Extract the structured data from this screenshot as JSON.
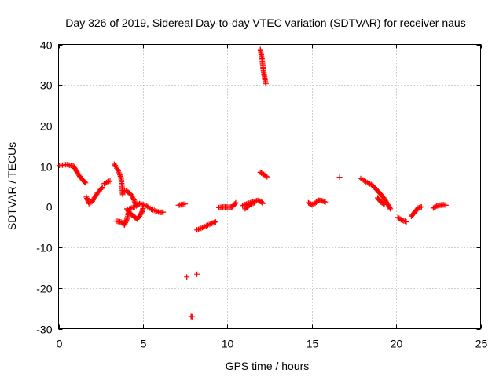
{
  "chart_data": {
    "type": "scatter",
    "title": "Day 326 of 2019, Sidereal Day-to-day VTEC variation (SDTVAR) for receiver naus",
    "xlabel": "GPS time / hours",
    "ylabel": "SDTVAR / TECUs",
    "xlim": [
      0,
      25
    ],
    "ylim": [
      -30,
      40
    ],
    "xticks": [
      0,
      5,
      10,
      15,
      20,
      25
    ],
    "yticks": [
      -30,
      -20,
      -10,
      0,
      10,
      20,
      30,
      40
    ],
    "grid": true,
    "marker": "+",
    "color": "#ff0000",
    "series": [
      {
        "name": "SDTVAR",
        "segments": [
          [
            [
              0.05,
              10.2
            ],
            [
              0.5,
              10.4
            ],
            [
              0.9,
              10.0
            ],
            [
              1.0,
              9.2
            ],
            [
              1.3,
              7.2
            ],
            [
              1.6,
              5.9
            ],
            [
              1.5,
              6.3
            ]
          ],
          [
            [
              1.65,
              2.4
            ],
            [
              1.8,
              0.8
            ],
            [
              2.0,
              1.4
            ],
            [
              2.3,
              3.4
            ],
            [
              2.6,
              4.8
            ]
          ],
          [
            [
              2.7,
              5.7
            ],
            [
              3.05,
              6.4
            ]
          ],
          [
            [
              3.3,
              10.5
            ],
            [
              3.5,
              9.2
            ],
            [
              3.7,
              7.2
            ],
            [
              3.75,
              5.4
            ],
            [
              3.8,
              3.0
            ]
          ],
          [
            [
              3.4,
              -3.5
            ],
            [
              3.7,
              -3.7
            ],
            [
              3.9,
              -4.5
            ],
            [
              4.05,
              -3.0
            ],
            [
              4.2,
              -0.5
            ],
            [
              4.5,
              0.0
            ]
          ],
          [
            [
              3.75,
              3.6
            ],
            [
              4.0,
              4.0
            ],
            [
              4.3,
              3.0
            ],
            [
              4.5,
              1.4
            ],
            [
              4.6,
              0.2
            ],
            [
              4.8,
              0.8
            ],
            [
              5.2,
              0.3
            ],
            [
              5.5,
              -0.6
            ],
            [
              6.0,
              -1.4
            ],
            [
              6.2,
              -1.3
            ]
          ],
          [
            [
              4.05,
              -0.5
            ],
            [
              4.2,
              -1.5
            ],
            [
              4.5,
              -2.5
            ],
            [
              4.65,
              -3.0
            ],
            [
              4.8,
              -2.3
            ],
            [
              4.95,
              -1.2
            ],
            [
              5.0,
              -0.4
            ]
          ],
          [
            [
              7.1,
              0.4
            ],
            [
              7.5,
              0.7
            ]
          ],
          [
            [
              7.6,
              -17.3
            ]
          ],
          [
            [
              8.2,
              -16.6
            ]
          ],
          [
            [
              7.85,
              -27.0
            ],
            [
              7.95,
              -27.1
            ]
          ],
          [
            [
              8.2,
              -5.7
            ],
            [
              8.6,
              -5.0
            ],
            [
              9.0,
              -4.2
            ],
            [
              9.3,
              -3.7
            ]
          ],
          [
            [
              9.5,
              -0.2
            ],
            [
              9.8,
              0.0
            ],
            [
              10.1,
              -0.1
            ],
            [
              10.3,
              0.0
            ],
            [
              10.4,
              0.5
            ],
            [
              10.5,
              1.0
            ]
          ],
          [
            [
              10.9,
              0.3
            ],
            [
              11.2,
              0.8
            ],
            [
              11.5,
              1.2
            ],
            [
              11.8,
              1.6
            ],
            [
              12.0,
              1.3
            ],
            [
              12.1,
              0.8
            ]
          ],
          [
            [
              11.05,
              -0.5
            ],
            [
              11.3,
              0.4
            ],
            [
              11.6,
              1.0
            ]
          ],
          [
            [
              11.95,
              8.5
            ],
            [
              12.15,
              8.0
            ],
            [
              12.35,
              7.4
            ]
          ],
          [
            [
              11.95,
              38.8
            ],
            [
              12.05,
              36.5
            ],
            [
              12.12,
              34.0
            ],
            [
              12.2,
              32.0
            ],
            [
              12.28,
              30.3
            ]
          ],
          [
            [
              14.8,
              1.0
            ],
            [
              15.0,
              0.5
            ],
            [
              15.2,
              0.9
            ],
            [
              15.4,
              1.6
            ],
            [
              15.6,
              1.5
            ],
            [
              15.8,
              1.2
            ]
          ],
          [
            [
              16.65,
              7.3
            ]
          ],
          [
            [
              17.9,
              7.0
            ],
            [
              18.2,
              6.2
            ],
            [
              18.6,
              5.3
            ],
            [
              19.0,
              3.5
            ],
            [
              19.3,
              2.0
            ],
            [
              19.5,
              0.6
            ],
            [
              19.65,
              -0.5
            ]
          ],
          [
            [
              18.9,
              2.2
            ],
            [
              19.1,
              1.2
            ],
            [
              19.3,
              0.6
            ]
          ],
          [
            [
              20.1,
              -2.6
            ],
            [
              20.3,
              -3.2
            ],
            [
              20.6,
              -3.7
            ]
          ],
          [
            [
              20.9,
              -2.3
            ],
            [
              21.1,
              -1.3
            ],
            [
              21.3,
              -0.3
            ],
            [
              21.5,
              0.0
            ]
          ],
          [
            [
              22.2,
              -0.3
            ],
            [
              22.4,
              0.2
            ],
            [
              22.6,
              0.4
            ],
            [
              22.8,
              0.5
            ],
            [
              22.95,
              0.4
            ]
          ]
        ]
      }
    ]
  }
}
